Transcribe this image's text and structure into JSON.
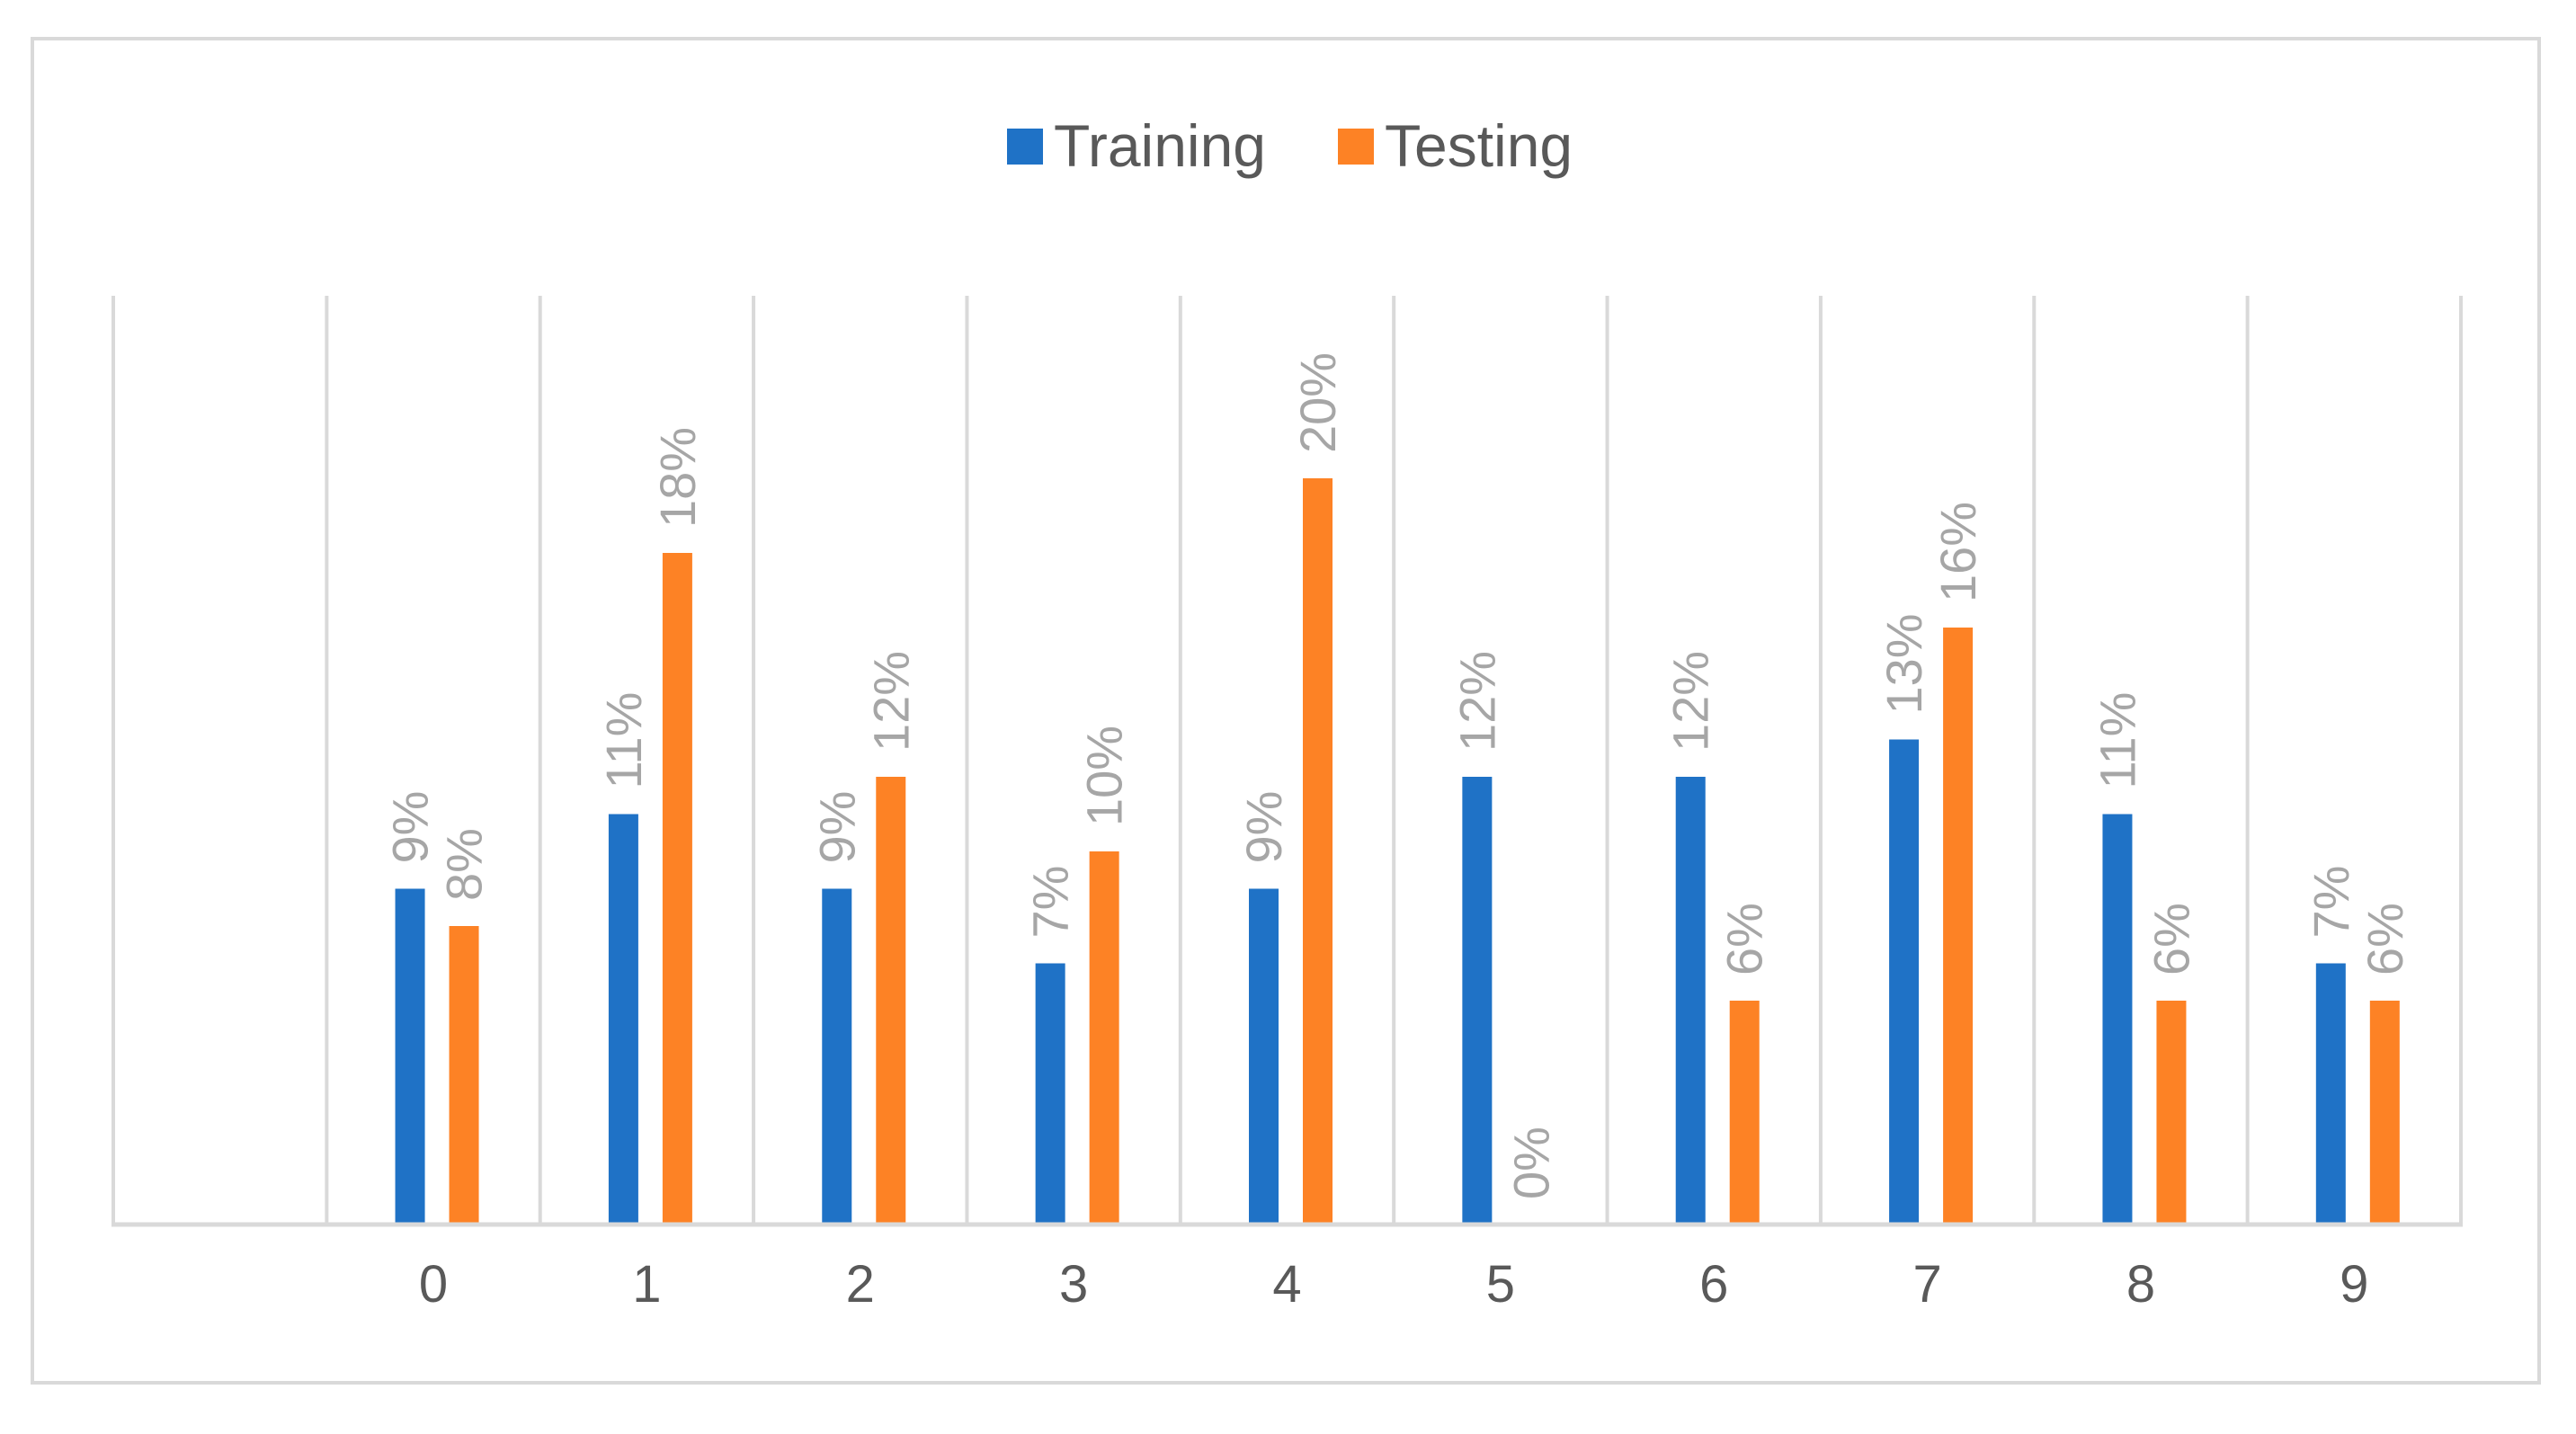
{
  "colors": {
    "training": "#1f72c6",
    "testing": "#fd8225",
    "grid": "#d9d9d9",
    "axis": "#d9d9d9",
    "tick_text": "#595959",
    "label_text": "#a6a6a6"
  },
  "chart_data": {
    "type": "bar",
    "title": "",
    "xlabel": "",
    "ylabel": "",
    "categories": [
      "",
      "0",
      "1",
      "2",
      "3",
      "4",
      "5",
      "6",
      "7",
      "8",
      "9"
    ],
    "series": [
      {
        "name": "Training",
        "values": [
          null,
          9,
          11,
          9,
          7,
          9,
          12,
          12,
          13,
          11,
          7
        ],
        "labels": [
          "",
          "9%",
          "11%",
          "9%",
          "7%",
          "9%",
          "12%",
          "12%",
          "13%",
          "11%",
          "7%"
        ]
      },
      {
        "name": "Testing",
        "values": [
          null,
          8,
          18,
          12,
          10,
          20,
          0,
          6,
          16,
          6,
          6
        ],
        "labels": [
          "",
          "8%",
          "18%",
          "12%",
          "10%",
          "20%",
          "0%",
          "6%",
          "16%",
          "6%",
          "6%"
        ]
      }
    ],
    "ylim": [
      0,
      25
    ],
    "unit": "%",
    "grid": "vertical-category-lines",
    "legend_position": "top-center"
  }
}
